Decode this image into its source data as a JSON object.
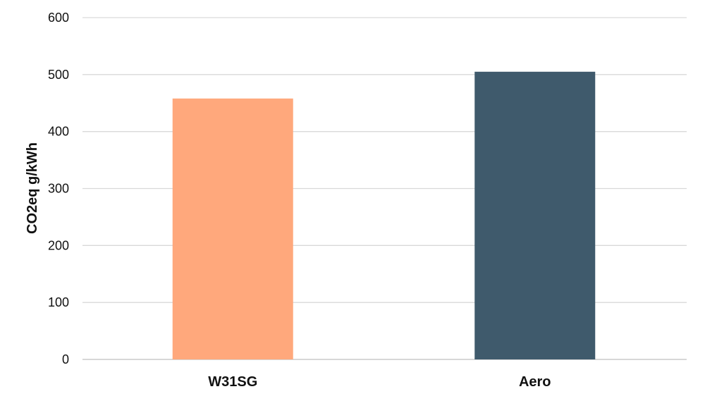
{
  "chart_data": {
    "type": "bar",
    "categories": [
      "W31SG",
      "Aero"
    ],
    "values": [
      458,
      505
    ],
    "title": "",
    "xlabel": "",
    "ylabel": "CO2eq g/kWh",
    "ylim": [
      0,
      600
    ],
    "yticks": [
      0,
      100,
      200,
      300,
      400,
      500,
      600
    ],
    "colors": [
      "#ffa87c",
      "#3f5a6c"
    ],
    "grid": true,
    "legend": "none"
  }
}
